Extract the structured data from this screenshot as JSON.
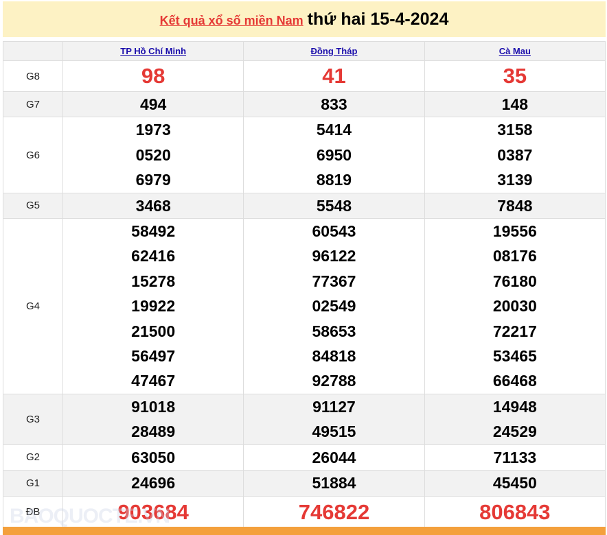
{
  "title": {
    "link": "Kết quả xổ số miền Nam",
    "date": "thứ hai 15-4-2024"
  },
  "provinces": [
    "TP Hồ Chí Minh",
    "Đồng Tháp",
    "Cà Mau"
  ],
  "rows": [
    {
      "label": "G8",
      "style": "red",
      "values": [
        [
          "98"
        ],
        [
          "41"
        ],
        [
          "35"
        ]
      ]
    },
    {
      "label": "G7",
      "values": [
        [
          "494"
        ],
        [
          "833"
        ],
        [
          "148"
        ]
      ]
    },
    {
      "label": "G6",
      "values": [
        [
          "1973",
          "0520",
          "6979"
        ],
        [
          "5414",
          "6950",
          "8819"
        ],
        [
          "3158",
          "0387",
          "3139"
        ]
      ]
    },
    {
      "label": "G5",
      "values": [
        [
          "3468"
        ],
        [
          "5548"
        ],
        [
          "7848"
        ]
      ]
    },
    {
      "label": "G4",
      "values": [
        [
          "58492",
          "62416",
          "15278",
          "19922",
          "21500",
          "56497",
          "47467"
        ],
        [
          "60543",
          "96122",
          "77367",
          "02549",
          "58653",
          "84818",
          "92788"
        ],
        [
          "19556",
          "08176",
          "76180",
          "20030",
          "72217",
          "53465",
          "66468"
        ]
      ]
    },
    {
      "label": "G3",
      "values": [
        [
          "91018",
          "28489"
        ],
        [
          "91127",
          "49515"
        ],
        [
          "14948",
          "24529"
        ]
      ]
    },
    {
      "label": "G2",
      "values": [
        [
          "63050"
        ],
        [
          "26044"
        ],
        [
          "71133"
        ]
      ]
    },
    {
      "label": "G1",
      "values": [
        [
          "24696"
        ],
        [
          "51884"
        ],
        [
          "45450"
        ]
      ]
    },
    {
      "label": "ĐB",
      "style": "db",
      "values": [
        [
          "903684"
        ],
        [
          "746822"
        ],
        [
          "806843"
        ]
      ]
    }
  ],
  "watermark": "BAOQUOCTE.VN",
  "colors": {
    "accent": "#e53935",
    "link": "#1a0dab",
    "title_bg": "#fdf2c4",
    "footer": "#f4a03c"
  }
}
